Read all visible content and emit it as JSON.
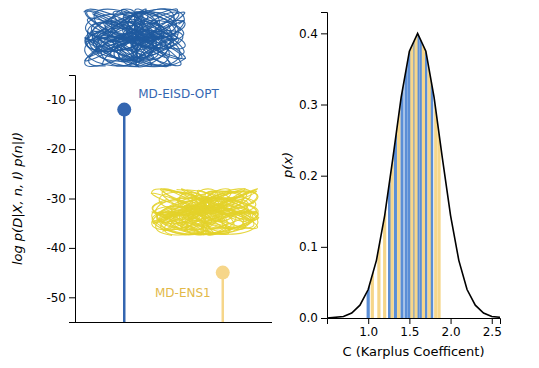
{
  "chart_data": [
    {
      "type": "stem",
      "categories": [
        "MD-EISD-OPT",
        "MD-ENS1"
      ],
      "values": [
        -12,
        -45
      ],
      "colors": [
        "#3466b0",
        "#f6d68a"
      ],
      "ylabel": "log p(D|X, n, I) p(n|I)",
      "ylim": [
        -55,
        -5
      ],
      "yticks": [
        -50,
        -40,
        -30,
        -20,
        -10
      ],
      "tick_labels": "y"
    },
    {
      "type": "density",
      "x": [
        0.5,
        0.6,
        0.7,
        0.8,
        0.9,
        1.0,
        1.1,
        1.2,
        1.3,
        1.4,
        1.5,
        1.6,
        1.7,
        1.8,
        1.9,
        2.0,
        2.1,
        2.2,
        2.3,
        2.4,
        2.5,
        2.6
      ],
      "values": [
        0.0,
        0.001,
        0.002,
        0.007,
        0.018,
        0.04,
        0.081,
        0.144,
        0.225,
        0.31,
        0.375,
        0.4,
        0.375,
        0.31,
        0.225,
        0.144,
        0.081,
        0.04,
        0.018,
        0.007,
        0.002,
        0.001
      ],
      "color": "#000000",
      "xlabel": "C (Karplus Coefficent)",
      "ylabel": "p(x)",
      "xlim": [
        0.5,
        2.6
      ],
      "ylim": [
        0,
        0.43
      ],
      "xticks": [
        {
          "value": 1,
          "label": "1.0"
        },
        1.5,
        {
          "value": 2,
          "label": "2.0"
        },
        2.5
      ],
      "yticks": [
        {
          "value": 0,
          "label": "0.0"
        },
        0.1,
        0.2,
        0.3,
        0.4
      ],
      "samples": [
        {
          "color": "#5b8ed6",
          "values": [
            1.0,
            1.26,
            1.33,
            1.41,
            1.46,
            1.5,
            1.55,
            1.6,
            1.64,
            1.7,
            1.77
          ]
        },
        {
          "color": "#f6d68a",
          "values": [
            1.05,
            1.13,
            1.2,
            1.29,
            1.37,
            1.53,
            1.58,
            1.67,
            1.74,
            1.82,
            1.86
          ]
        }
      ]
    }
  ]
}
